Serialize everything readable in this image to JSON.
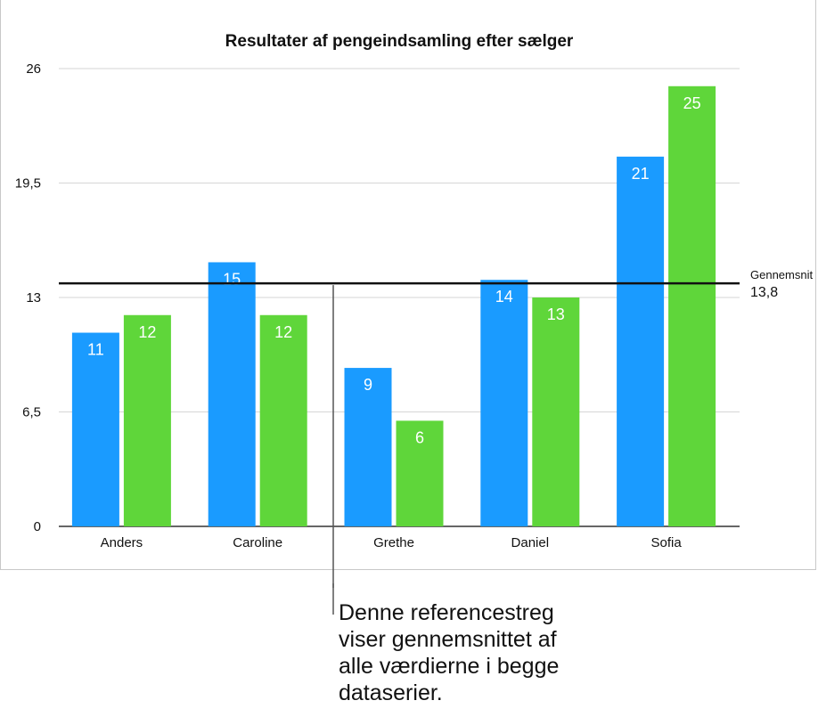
{
  "chart_data": {
    "type": "bar",
    "title": "Resultater af pengeindsamling efter sælger",
    "xlabel": "",
    "ylabel": "",
    "ylim": [
      0,
      26
    ],
    "yticks": [
      0,
      6.5,
      13,
      19.5,
      26
    ],
    "ytick_labels": [
      "0",
      "6,5",
      "13",
      "19,5",
      "26"
    ],
    "grid": true,
    "categories": [
      "Anders",
      "Caroline",
      "Grethe",
      "Daniel",
      "Sofia"
    ],
    "series": [
      {
        "values": [
          11,
          15,
          9,
          14,
          21
        ],
        "color": "#1a9bff"
      },
      {
        "values": [
          12,
          12,
          6,
          13,
          25
        ],
        "color": "#5fd63a"
      }
    ],
    "reference_line": {
      "name": "Gennemsnit",
      "value": 13.8,
      "value_label": "13,8"
    }
  },
  "annotation": {
    "text": "Denne referencestreg\nviser gennemsnittet af\nalle værdierne i begge\ndataserier."
  }
}
